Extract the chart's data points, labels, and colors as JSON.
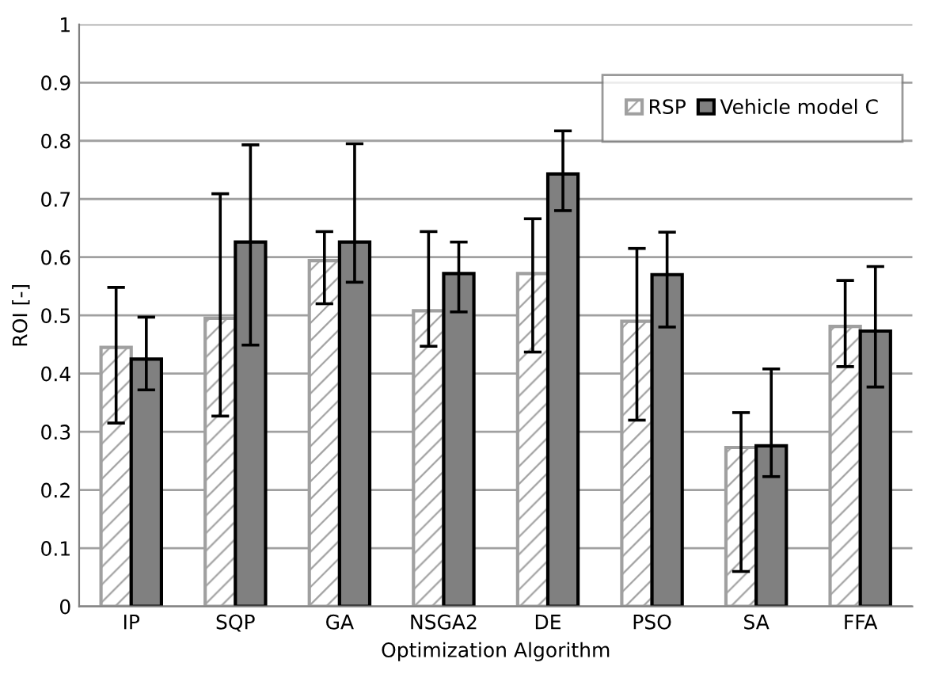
{
  "chart_data": {
    "type": "bar",
    "xlabel": "Optimization Algorithm",
    "ylabel": "ROI [-]",
    "categories": [
      "IP",
      "SQP",
      "GA",
      "NSGA2",
      "DE",
      "PSO",
      "SA",
      "FFA"
    ],
    "series": [
      {
        "name": "RSP",
        "color": "#a0a0a0",
        "values": [
          0.445,
          0.495,
          0.594,
          0.508,
          0.572,
          0.49,
          0.273,
          0.481
        ],
        "errors": [
          [
            0.315,
            0.548
          ],
          [
            0.327,
            0.709
          ],
          [
            0.52,
            0.644
          ],
          [
            0.447,
            0.644
          ],
          [
            0.437,
            0.666
          ],
          [
            0.32,
            0.615
          ],
          [
            0.06,
            0.333
          ],
          [
            0.412,
            0.56
          ]
        ]
      },
      {
        "name": "Vehicle model C",
        "color": "#808080",
        "values": [
          0.425,
          0.626,
          0.626,
          0.572,
          0.743,
          0.57,
          0.276,
          0.473
        ],
        "errors": [
          [
            0.372,
            0.497
          ],
          [
            0.449,
            0.793
          ],
          [
            0.557,
            0.795
          ],
          [
            0.506,
            0.626
          ],
          [
            0.68,
            0.817
          ],
          [
            0.48,
            0.643
          ],
          [
            0.223,
            0.408
          ],
          [
            0.377,
            0.584
          ]
        ]
      }
    ],
    "ylim": [
      0,
      1
    ],
    "yticks": [
      0,
      0.1,
      0.2,
      0.3,
      0.4,
      0.5,
      0.6,
      0.7,
      0.8,
      0.9,
      1
    ],
    "grid": "y",
    "legend": "top right"
  }
}
